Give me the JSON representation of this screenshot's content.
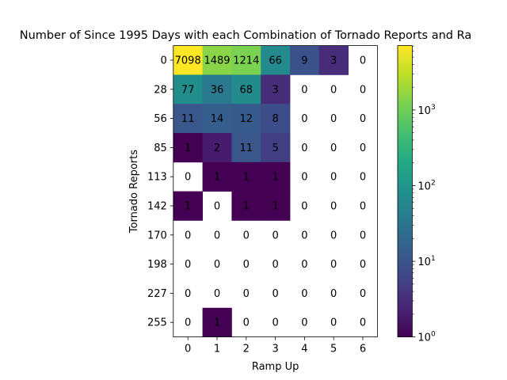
{
  "chart_data": {
    "type": "heatmap",
    "title": "Number of Since 1995 Days with each Combination of Tornado Reports and Ra",
    "xlabel": "Ramp Up",
    "ylabel": "Tornado Reports",
    "x_ticks": [
      "0",
      "1",
      "2",
      "3",
      "4",
      "5",
      "6"
    ],
    "y_ticks": [
      "0",
      "28",
      "56",
      "85",
      "113",
      "142",
      "170",
      "198",
      "227",
      "255"
    ],
    "colormap": "viridis",
    "color_scale": "log",
    "color_range": [
      1,
      7098
    ],
    "colorbar_ticks": [
      {
        "base": "10",
        "exp": "0",
        "value": 1
      },
      {
        "base": "10",
        "exp": "1",
        "value": 10
      },
      {
        "base": "10",
        "exp": "2",
        "value": 100
      },
      {
        "base": "10",
        "exp": "3",
        "value": 1000
      }
    ],
    "values": [
      [
        7098,
        1489,
        1214,
        66,
        9,
        3,
        0
      ],
      [
        77,
        36,
        68,
        3,
        0,
        0,
        0
      ],
      [
        11,
        14,
        12,
        8,
        0,
        0,
        0
      ],
      [
        1,
        2,
        11,
        5,
        0,
        0,
        0
      ],
      [
        0,
        1,
        1,
        1,
        0,
        0,
        0
      ],
      [
        1,
        0,
        1,
        1,
        0,
        0,
        0
      ],
      [
        0,
        0,
        0,
        0,
        0,
        0,
        0
      ],
      [
        0,
        0,
        0,
        0,
        0,
        0,
        0
      ],
      [
        0,
        0,
        0,
        0,
        0,
        0,
        0
      ],
      [
        0,
        1,
        0,
        0,
        0,
        0,
        0
      ]
    ]
  }
}
